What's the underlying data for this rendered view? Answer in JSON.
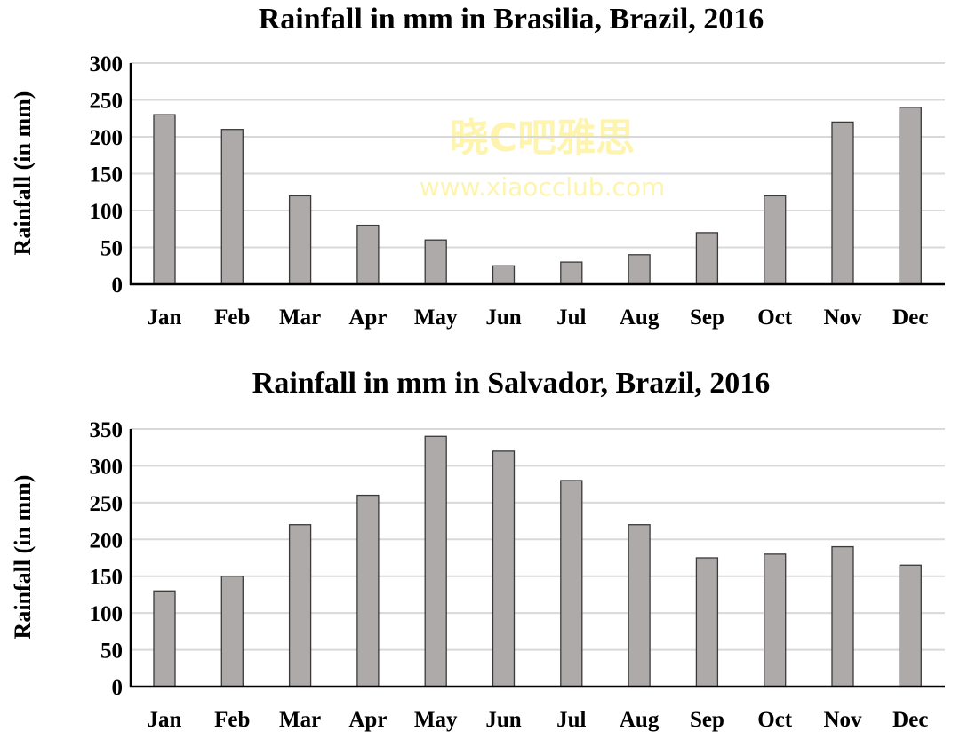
{
  "watermark": {
    "line1": "晓C吧雅思",
    "line2": "www.xiaocclub.com"
  },
  "colors": {
    "bar": "#aeaaaa",
    "bar_border": "#3a3a3a",
    "grid": "#d9d9d9",
    "axis": "#000000"
  },
  "chart_data": [
    {
      "type": "bar",
      "title": "Rainfall in mm in Brasilia, Brazil, 2016",
      "xlabel": "",
      "ylabel": "Rainfall (in mm)",
      "categories": [
        "Jan",
        "Feb",
        "Mar",
        "Apr",
        "May",
        "Jun",
        "Jul",
        "Aug",
        "Sep",
        "Oct",
        "Nov",
        "Dec"
      ],
      "values": [
        230,
        210,
        120,
        80,
        60,
        25,
        30,
        40,
        70,
        120,
        220,
        240
      ],
      "ylim": [
        0,
        300
      ],
      "yticks": [
        0,
        50,
        100,
        150,
        200,
        250,
        300
      ],
      "grid": true
    },
    {
      "type": "bar",
      "title": "Rainfall in mm in Salvador, Brazil, 2016",
      "xlabel": "",
      "ylabel": "Rainfall (in mm)",
      "categories": [
        "Jan",
        "Feb",
        "Mar",
        "Apr",
        "May",
        "Jun",
        "Jul",
        "Aug",
        "Sep",
        "Oct",
        "Nov",
        "Dec"
      ],
      "values": [
        130,
        150,
        220,
        260,
        340,
        320,
        280,
        220,
        175,
        180,
        190,
        165
      ],
      "ylim": [
        0,
        350
      ],
      "yticks": [
        0,
        50,
        100,
        150,
        200,
        250,
        300,
        350
      ],
      "grid": true
    }
  ]
}
